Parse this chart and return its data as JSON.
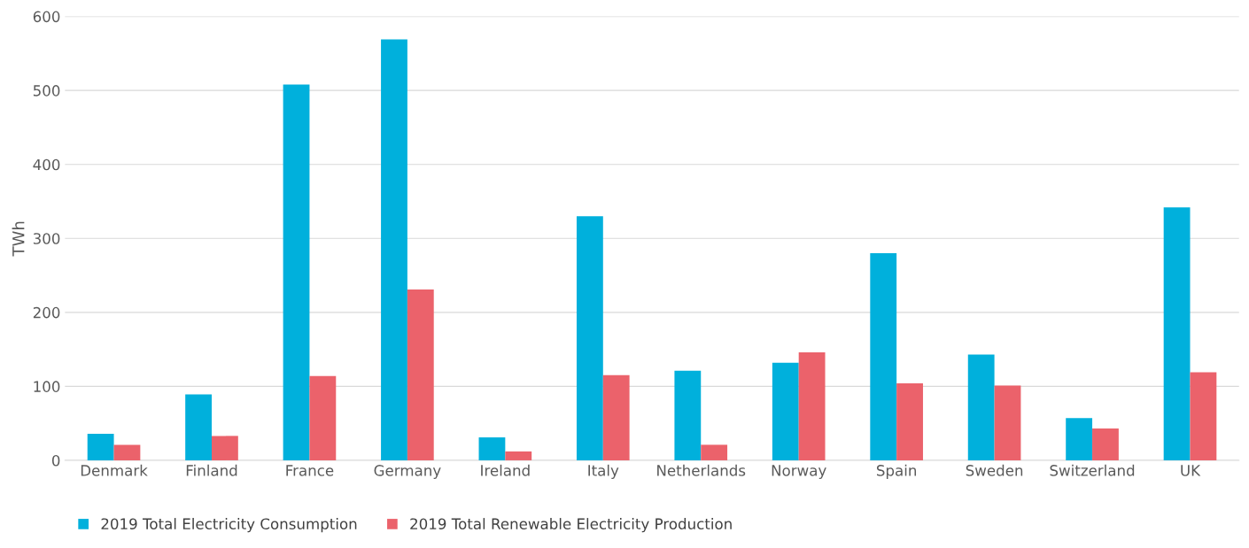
{
  "chart_data": {
    "type": "bar",
    "ylabel": "TWh",
    "categories": [
      "Denmark",
      "Finland",
      "France",
      "Germany",
      "Ireland",
      "Italy",
      "Netherlands",
      "Norway",
      "Spain",
      "Sweden",
      "Switzerland",
      "UK"
    ],
    "series": [
      {
        "name": "2019 Total Electricity Consumption",
        "color": "#00b0dc",
        "values": [
          36,
          89,
          508,
          569,
          31,
          330,
          121,
          132,
          280,
          143,
          57,
          342
        ]
      },
      {
        "name": "2019 Total Renewable Electricity Production",
        "color": "#eb626b",
        "values": [
          21,
          33,
          114,
          231,
          12,
          115,
          21,
          146,
          104,
          101,
          43,
          119
        ]
      }
    ],
    "ylim": [
      0,
      600
    ],
    "yticks": [
      0,
      100,
      200,
      300,
      400,
      500,
      600
    ],
    "grid": "y",
    "legend": "bottom left"
  }
}
